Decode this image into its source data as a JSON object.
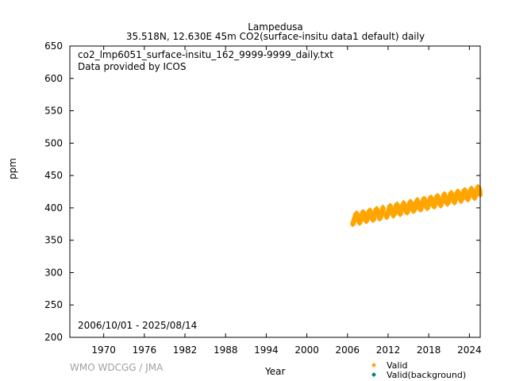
{
  "header": {
    "site": "Lampedusa",
    "info": "35.518N, 12.630E 45m    CO2(surface-insitu data1 default) daily"
  },
  "chart_data": {
    "type": "scatter",
    "title": "Lampedusa",
    "subtitle": "35.518N, 12.630E 45m    CO2(surface-insitu data1 default) daily",
    "xlabel": "Year",
    "ylabel": "ppm",
    "xlim": [
      1965,
      2025.6
    ],
    "ylim": [
      200,
      650
    ],
    "x_ticks": [
      1970,
      1976,
      1982,
      1988,
      1994,
      2000,
      2006,
      2012,
      2018,
      2024
    ],
    "y_ticks": [
      200,
      250,
      300,
      350,
      400,
      450,
      500,
      550,
      600,
      650
    ],
    "annotations": {
      "file": "co2_lmp6051_surface-insitu_162_9999-9999_daily.txt",
      "provider": "Data provided by ICOS",
      "period": "2006/10/01 - 2025/08/14"
    },
    "series": [
      {
        "name": "Valid",
        "color": "#ffa500",
        "start_year": 2006.75,
        "end_year": 2025.62,
        "trend": [
          [
            2006.75,
            382.5
          ],
          [
            2025.62,
            425.0
          ]
        ],
        "seasonal_amplitude_ppm": 6,
        "gaps": [
          [
            2011.3,
            2011.6
          ]
        ]
      },
      {
        "name": "Valid(background)",
        "color": "#008080",
        "start_year": null,
        "end_year": null
      }
    ],
    "legend_position": "bottom-right",
    "grid": false
  },
  "footer": {
    "credit": "WMO WDCGG / JMA"
  }
}
